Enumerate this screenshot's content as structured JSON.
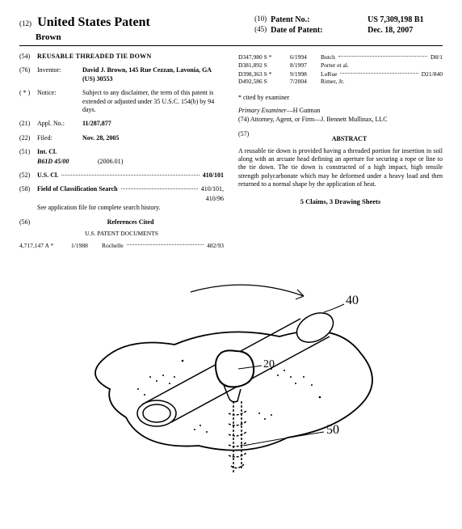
{
  "header": {
    "doc_num_left": "(12)",
    "country_title": "United States Patent",
    "inventor_surname": "Brown",
    "patent_no_num": "(10)",
    "patent_no_label": "Patent No.:",
    "patent_no_value": "US 7,309,198 B1",
    "date_num": "(45)",
    "date_label": "Date of Patent:",
    "date_value": "Dec. 18, 2007"
  },
  "left": {
    "title_num": "(54)",
    "title": "REUSABLE THREADED TIE DOWN",
    "inventor_num": "(76)",
    "inventor_label": "Inventor:",
    "inventor_value": "David J. Brown, 145 Rue Cezzan, Lavonia, GA (US) 30553",
    "notice_num": "( * )",
    "notice_label": "Notice:",
    "notice_value": "Subject to any disclaimer, the term of this patent is extended or adjusted under 35 U.S.C. 154(b) by 94 days.",
    "appl_num": "(21)",
    "appl_label": "Appl. No.:",
    "appl_value": "11/287,877",
    "filed_num": "(22)",
    "filed_label": "Filed:",
    "filed_value": "Nov. 28, 2005",
    "intcl_num": "(51)",
    "intcl_label": "Int. Cl.",
    "intcl_code": "B61D 45/00",
    "intcl_year": "(2006.01)",
    "uscl_num": "(52)",
    "uscl_label": "U.S. Cl.",
    "uscl_value": "410/101",
    "fos_num": "(58)",
    "fos_label": "Field of Classification Search",
    "fos_value1": "410/101,",
    "fos_value2": "410/96",
    "fos_note": "See application file for complete search history.",
    "ref_num": "(56)",
    "ref_label": "References Cited",
    "ref_sub": "U.S. PATENT DOCUMENTS",
    "cite1_no": "4,717,147 A *",
    "cite1_date": "1/1988",
    "cite1_name": "Rochelle",
    "cite1_class": "482/93"
  },
  "right": {
    "cites": [
      {
        "no": "D347,980 S *",
        "date": "6/1994",
        "name": "Butch",
        "class": "D8/1"
      },
      {
        "no": "D381,892 S",
        "date": "8/1997",
        "name": "Porter et al.",
        "class": ""
      },
      {
        "no": "D398,363 S *",
        "date": "9/1998",
        "name": "LoRue",
        "class": "D21/840"
      },
      {
        "no": "D492,586 S",
        "date": "7/2004",
        "name": "Rimer, Jr.",
        "class": ""
      }
    ],
    "examiner_note": "* cited by examiner",
    "examiner_label": "Primary Examiner",
    "examiner_name": "—H Gutman",
    "attorney_label": "(74) Attorney, Agent, or Firm",
    "attorney_name": "—J. Bennett Mullinax, LLC",
    "abstract_num": "(57)",
    "abstract_label": "ABSTRACT",
    "abstract_text": "A reusable tie down is provided having a threaded portion for insertion in soil along with an arcuate head defining an aperture for securing a rope or line to the tie down. The tie down is constructed of a high impact, high tensile strength polycarbonate which may be deformed under a heavy load and then returned to a normal shape by the application of heat.",
    "claims_line": "5 Claims, 3 Drawing Sheets"
  },
  "drawing": {
    "labels": {
      "a": "40",
      "b": "20",
      "c": "50"
    }
  }
}
